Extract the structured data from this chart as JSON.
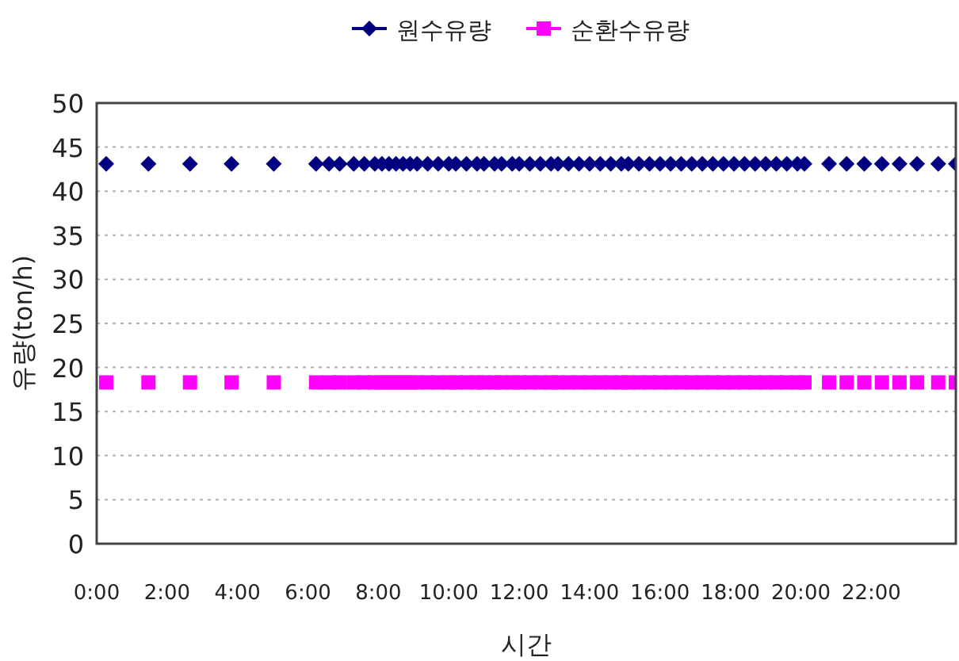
{
  "chart_data": {
    "type": "scatter",
    "xlabel": "시간",
    "ylabel": "유량(ton/h)",
    "xlim": [
      0,
      24.4
    ],
    "ylim": [
      0,
      50
    ],
    "xticks": [
      {
        "value": 0,
        "label": "0:00"
      },
      {
        "value": 2,
        "label": "2:00"
      },
      {
        "value": 4,
        "label": "4:00"
      },
      {
        "value": 6,
        "label": "6:00"
      },
      {
        "value": 8,
        "label": "8:00"
      },
      {
        "value": 10,
        "label": "10:00"
      },
      {
        "value": 12,
        "label": "12:00"
      },
      {
        "value": 14,
        "label": "14:00"
      },
      {
        "value": 16,
        "label": "16:00"
      },
      {
        "value": 18,
        "label": "18:00"
      },
      {
        "value": 20,
        "label": "20:00"
      },
      {
        "value": 22,
        "label": "22:00"
      }
    ],
    "yticks": [
      0,
      5,
      10,
      15,
      20,
      25,
      30,
      35,
      40,
      45,
      50
    ],
    "grid": "y",
    "legend": "top",
    "x": [
      0.27,
      1.47,
      2.65,
      3.83,
      5.03,
      6.23,
      6.6,
      6.9,
      7.3,
      7.6,
      7.9,
      8.1,
      8.3,
      8.5,
      8.7,
      8.9,
      9.1,
      9.4,
      9.7,
      10.0,
      10.2,
      10.5,
      10.8,
      11.0,
      11.3,
      11.5,
      11.8,
      12.0,
      12.3,
      12.6,
      12.9,
      13.1,
      13.4,
      13.7,
      14.0,
      14.3,
      14.6,
      14.9,
      15.1,
      15.4,
      15.7,
      16.0,
      16.3,
      16.6,
      16.9,
      17.2,
      17.5,
      17.8,
      18.1,
      18.4,
      18.7,
      19.0,
      19.3,
      19.6,
      19.9,
      20.1,
      20.8,
      21.3,
      21.8,
      22.3,
      22.8,
      23.3,
      23.9,
      24.4
    ],
    "series": [
      {
        "name": "원수유량",
        "color": "#000080",
        "marker": "diamond",
        "values": [
          43.1,
          43.1,
          43.1,
          43.1,
          43.1,
          43.1,
          43.1,
          43.1,
          43.1,
          43.1,
          43.1,
          43.1,
          43.1,
          43.1,
          43.1,
          43.1,
          43.1,
          43.1,
          43.1,
          43.1,
          43.1,
          43.1,
          43.1,
          43.1,
          43.1,
          43.1,
          43.1,
          43.1,
          43.1,
          43.1,
          43.1,
          43.1,
          43.1,
          43.1,
          43.1,
          43.1,
          43.1,
          43.1,
          43.1,
          43.1,
          43.1,
          43.1,
          43.1,
          43.1,
          43.1,
          43.1,
          43.1,
          43.1,
          43.1,
          43.1,
          43.1,
          43.1,
          43.1,
          43.1,
          43.1,
          43.1,
          43.1,
          43.1,
          43.1,
          43.1,
          43.1,
          43.1,
          43.1,
          43.1
        ]
      },
      {
        "name": "순환수유량",
        "color": "#ff00ff",
        "marker": "square",
        "values": [
          18.3,
          18.3,
          18.3,
          18.3,
          18.3,
          18.3,
          18.3,
          18.3,
          18.3,
          18.3,
          18.3,
          18.3,
          18.3,
          18.3,
          18.3,
          18.3,
          18.3,
          18.3,
          18.3,
          18.3,
          18.3,
          18.3,
          18.3,
          18.3,
          18.3,
          18.3,
          18.3,
          18.3,
          18.3,
          18.3,
          18.3,
          18.3,
          18.3,
          18.3,
          18.3,
          18.3,
          18.3,
          18.3,
          18.3,
          18.3,
          18.3,
          18.3,
          18.3,
          18.3,
          18.3,
          18.3,
          18.3,
          18.3,
          18.3,
          18.3,
          18.3,
          18.3,
          18.3,
          18.3,
          18.3,
          18.3,
          18.3,
          18.3,
          18.3,
          18.3,
          18.3,
          18.3,
          18.3,
          18.3
        ]
      }
    ]
  }
}
